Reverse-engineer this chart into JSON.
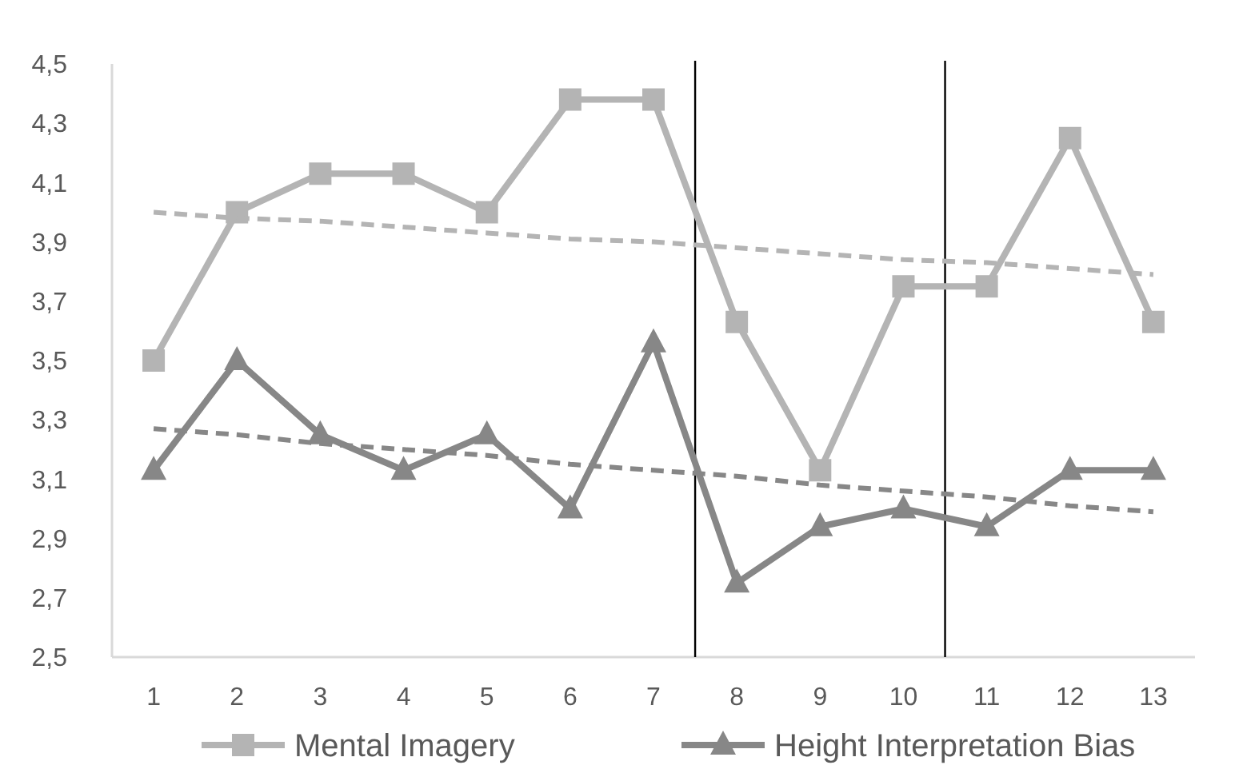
{
  "chart_data": {
    "type": "line",
    "x": [
      1,
      2,
      3,
      4,
      5,
      6,
      7,
      8,
      9,
      10,
      11,
      12,
      13
    ],
    "xlim": [
      0.5,
      13.5
    ],
    "xticks": [
      1,
      2,
      3,
      4,
      5,
      6,
      7,
      8,
      9,
      10,
      11,
      12,
      13
    ],
    "ylim": [
      2.5,
      4.5
    ],
    "yticks": [
      {
        "value": 2.5,
        "label": "2,5"
      },
      {
        "value": 2.7,
        "label": "2,7"
      },
      {
        "value": 2.9,
        "label": "2,9"
      },
      {
        "value": 3.1,
        "label": "3,1"
      },
      {
        "value": 3.3,
        "label": "3,3"
      },
      {
        "value": 3.5,
        "label": "3,5"
      },
      {
        "value": 3.7,
        "label": "3,7"
      },
      {
        "value": 3.9,
        "label": "3,9"
      },
      {
        "value": 4.1,
        "label": "4,1"
      },
      {
        "value": 4.3,
        "label": "4,3"
      },
      {
        "value": 4.5,
        "label": "4,5"
      }
    ],
    "grid": false,
    "legend": "bottom",
    "series": [
      {
        "name": "Mental Imagery",
        "color": "#b4b4b4",
        "marker": "square",
        "line_style": "solid",
        "values": [
          3.5,
          4.0,
          4.13,
          4.13,
          4.0,
          4.38,
          4.38,
          3.63,
          3.13,
          3.75,
          3.75,
          4.25,
          3.63
        ]
      },
      {
        "name": "Height Interpretation Bias",
        "color": "#878787",
        "marker": "triangle",
        "line_style": "solid",
        "values": [
          3.13,
          3.5,
          3.25,
          3.13,
          3.25,
          3.0,
          3.56,
          2.75,
          2.94,
          3.0,
          2.94,
          3.13,
          3.13
        ]
      },
      {
        "color": "#b4b4b4",
        "marker": "none",
        "line_style": "dashed",
        "values": [
          4.0,
          3.98,
          3.97,
          3.95,
          3.93,
          3.91,
          3.9,
          3.88,
          3.86,
          3.84,
          3.83,
          3.81,
          3.79
        ]
      },
      {
        "color": "#878787",
        "marker": "none",
        "line_style": "dashed",
        "values": [
          3.27,
          3.25,
          3.22,
          3.2,
          3.18,
          3.15,
          3.13,
          3.11,
          3.08,
          3.06,
          3.04,
          3.01,
          2.99
        ]
      }
    ],
    "ref_lines": [
      {
        "axis": "x",
        "value": 7.5,
        "color": "#000000"
      },
      {
        "axis": "x",
        "value": 10.5,
        "color": "#000000"
      }
    ]
  }
}
